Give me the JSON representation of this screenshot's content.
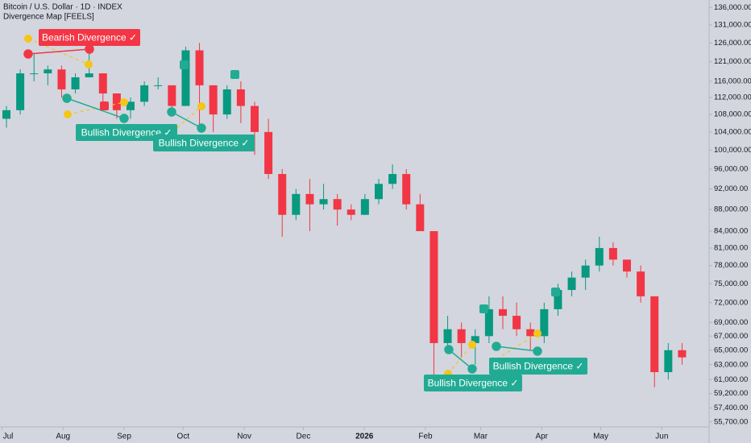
{
  "chart_data": {
    "type": "candlestick",
    "title": "Bitcoin / U.S. Dollar · 1D · INDEX",
    "subtitle": "Divergence Map [FEELS]",
    "log_scale": true,
    "up_color": "#089981",
    "down_color": "#f23645",
    "ylim": [
      55100,
      138200
    ],
    "yticks": [
      {
        "value": 136000,
        "label": "136,000.00"
      },
      {
        "value": 131000,
        "label": "131,000.00"
      },
      {
        "value": 126000,
        "label": "126,000.00"
      },
      {
        "value": 121000,
        "label": "121,000.00"
      },
      {
        "value": 116000,
        "label": "116,000.00"
      },
      {
        "value": 112000,
        "label": "112,000.00"
      },
      {
        "value": 108000,
        "label": "108,000.00"
      },
      {
        "value": 104000,
        "label": "104,000.00"
      },
      {
        "value": 100000,
        "label": "100,000.00"
      },
      {
        "value": 96000,
        "label": "96,000.00"
      },
      {
        "value": 92000,
        "label": "92,000.00"
      },
      {
        "value": 88000,
        "label": "88,000.00"
      },
      {
        "value": 84000,
        "label": "84,000.00"
      },
      {
        "value": 81000,
        "label": "81,000.00"
      },
      {
        "value": 78000,
        "label": "78,000.00"
      },
      {
        "value": 75000,
        "label": "75,000.00"
      },
      {
        "value": 72000,
        "label": "72,000.00"
      },
      {
        "value": 69000,
        "label": "69,000.00"
      },
      {
        "value": 67000,
        "label": "67,000.00"
      },
      {
        "value": 65000,
        "label": "65,000.00"
      },
      {
        "value": 63000,
        "label": "63,000.00"
      },
      {
        "value": 61000,
        "label": "61,000.00"
      },
      {
        "value": 59200,
        "label": "59,200.00"
      },
      {
        "value": 57400,
        "label": "57,400.00"
      },
      {
        "value": 55700,
        "label": "55,700.00"
      }
    ],
    "xlim": [
      "2025-06-30",
      "2026-06-25"
    ],
    "xticks": [
      {
        "value": "2025-07-01",
        "label": "Jul"
      },
      {
        "value": "2025-08-01",
        "label": "Aug"
      },
      {
        "value": "2025-09-01",
        "label": "Sep"
      },
      {
        "value": "2025-10-01",
        "label": "Oct"
      },
      {
        "value": "2025-11-01",
        "label": "Nov"
      },
      {
        "value": "2025-12-01",
        "label": "Dec"
      },
      {
        "value": "2026-01-01",
        "label": "2026"
      },
      {
        "value": "2026-02-01",
        "label": "Feb"
      },
      {
        "value": "2026-03-01",
        "label": "Mar"
      },
      {
        "value": "2026-04-01",
        "label": "Apr"
      },
      {
        "value": "2026-05-01",
        "label": "May"
      },
      {
        "value": "2026-06-01",
        "label": "Jun"
      }
    ],
    "x": [
      "2025-06-30",
      "2025-07-07",
      "2025-07-14",
      "2025-07-21",
      "2025-07-28",
      "2025-08-04",
      "2025-08-11",
      "2025-08-18",
      "2025-08-25",
      "2025-09-01",
      "2025-09-08",
      "2025-09-15",
      "2025-09-22",
      "2025-09-29",
      "2025-10-06",
      "2025-10-13",
      "2025-10-20",
      "2025-10-27",
      "2025-11-03",
      "2025-11-10",
      "2025-11-17",
      "2025-11-24",
      "2025-12-01",
      "2025-12-08",
      "2025-12-15",
      "2025-12-22",
      "2025-12-29",
      "2026-01-05",
      "2026-01-12",
      "2026-01-19",
      "2026-01-26",
      "2026-02-02",
      "2026-02-09",
      "2026-02-16",
      "2026-02-23",
      "2026-03-02",
      "2026-03-09",
      "2026-03-16",
      "2026-03-23",
      "2026-03-30",
      "2026-04-06",
      "2026-04-13",
      "2026-04-20",
      "2026-04-27",
      "2026-05-04",
      "2026-05-11",
      "2026-05-18",
      "2026-05-25",
      "2026-06-01",
      "2026-06-08"
    ],
    "open": [
      107000,
      109000,
      118000,
      118000,
      119000,
      114000,
      117000,
      118000,
      113000,
      109000,
      111000,
      115000,
      115000,
      110000,
      124000,
      115000,
      108000,
      114000,
      110000,
      104000,
      95000,
      87000,
      91000,
      89000,
      90000,
      88000,
      87000,
      90000,
      93000,
      95000,
      89000,
      84000,
      66000,
      68000,
      66000,
      67000,
      71000,
      70000,
      68000,
      67000,
      71000,
      74000,
      76000,
      78000,
      81000,
      79000,
      77000,
      73000,
      62000,
      65000
    ],
    "high": [
      110000,
      119000,
      123000,
      120000,
      120000,
      118000,
      124000,
      118000,
      113000,
      112000,
      116000,
      117000,
      115000,
      125000,
      126000,
      115000,
      115000,
      116000,
      111000,
      107000,
      96000,
      92000,
      94000,
      93000,
      91000,
      89000,
      91000,
      94000,
      97000,
      96000,
      91000,
      84000,
      70000,
      69000,
      68000,
      73000,
      73000,
      72000,
      69000,
      72000,
      75000,
      77000,
      79000,
      83000,
      82000,
      79000,
      78000,
      73000,
      66000,
      66000
    ],
    "low": [
      105000,
      108000,
      116000,
      115000,
      112000,
      113000,
      117000,
      111000,
      107000,
      107000,
      110000,
      114000,
      108000,
      110000,
      104000,
      104000,
      107000,
      106000,
      99000,
      94000,
      83000,
      86000,
      84000,
      88000,
      85000,
      86000,
      87000,
      89000,
      92000,
      88000,
      84000,
      61000,
      65000,
      64000,
      63000,
      66000,
      68000,
      67000,
      65000,
      66000,
      70000,
      73000,
      74000,
      77000,
      78000,
      76000,
      72000,
      60000,
      61000,
      63000
    ],
    "close": [
      109000,
      118000,
      118000,
      119000,
      114000,
      117000,
      118000,
      113000,
      109000,
      111000,
      115000,
      115000,
      110000,
      124000,
      115000,
      108000,
      114000,
      110000,
      104000,
      95000,
      87000,
      91000,
      89000,
      90000,
      88000,
      87000,
      90000,
      93000,
      95000,
      89000,
      84000,
      66000,
      68000,
      66000,
      67000,
      71000,
      70000,
      68000,
      67000,
      71000,
      74000,
      76000,
      78000,
      81000,
      79000,
      77000,
      73000,
      62000,
      65000,
      64000
    ],
    "annotations": [
      {
        "text": "Bearish Divergence ✓",
        "color": "#f23645"
      },
      {
        "text": "Bullish Divergence ✓",
        "color": "#22ab94"
      },
      {
        "text": "Bullish Divergence ✓",
        "color": "#22ab94"
      },
      {
        "text": "Bullish Divergence ✓",
        "color": "#22ab94"
      },
      {
        "text": "Bullish Divergence ✓",
        "color": "#22ab94"
      }
    ]
  }
}
